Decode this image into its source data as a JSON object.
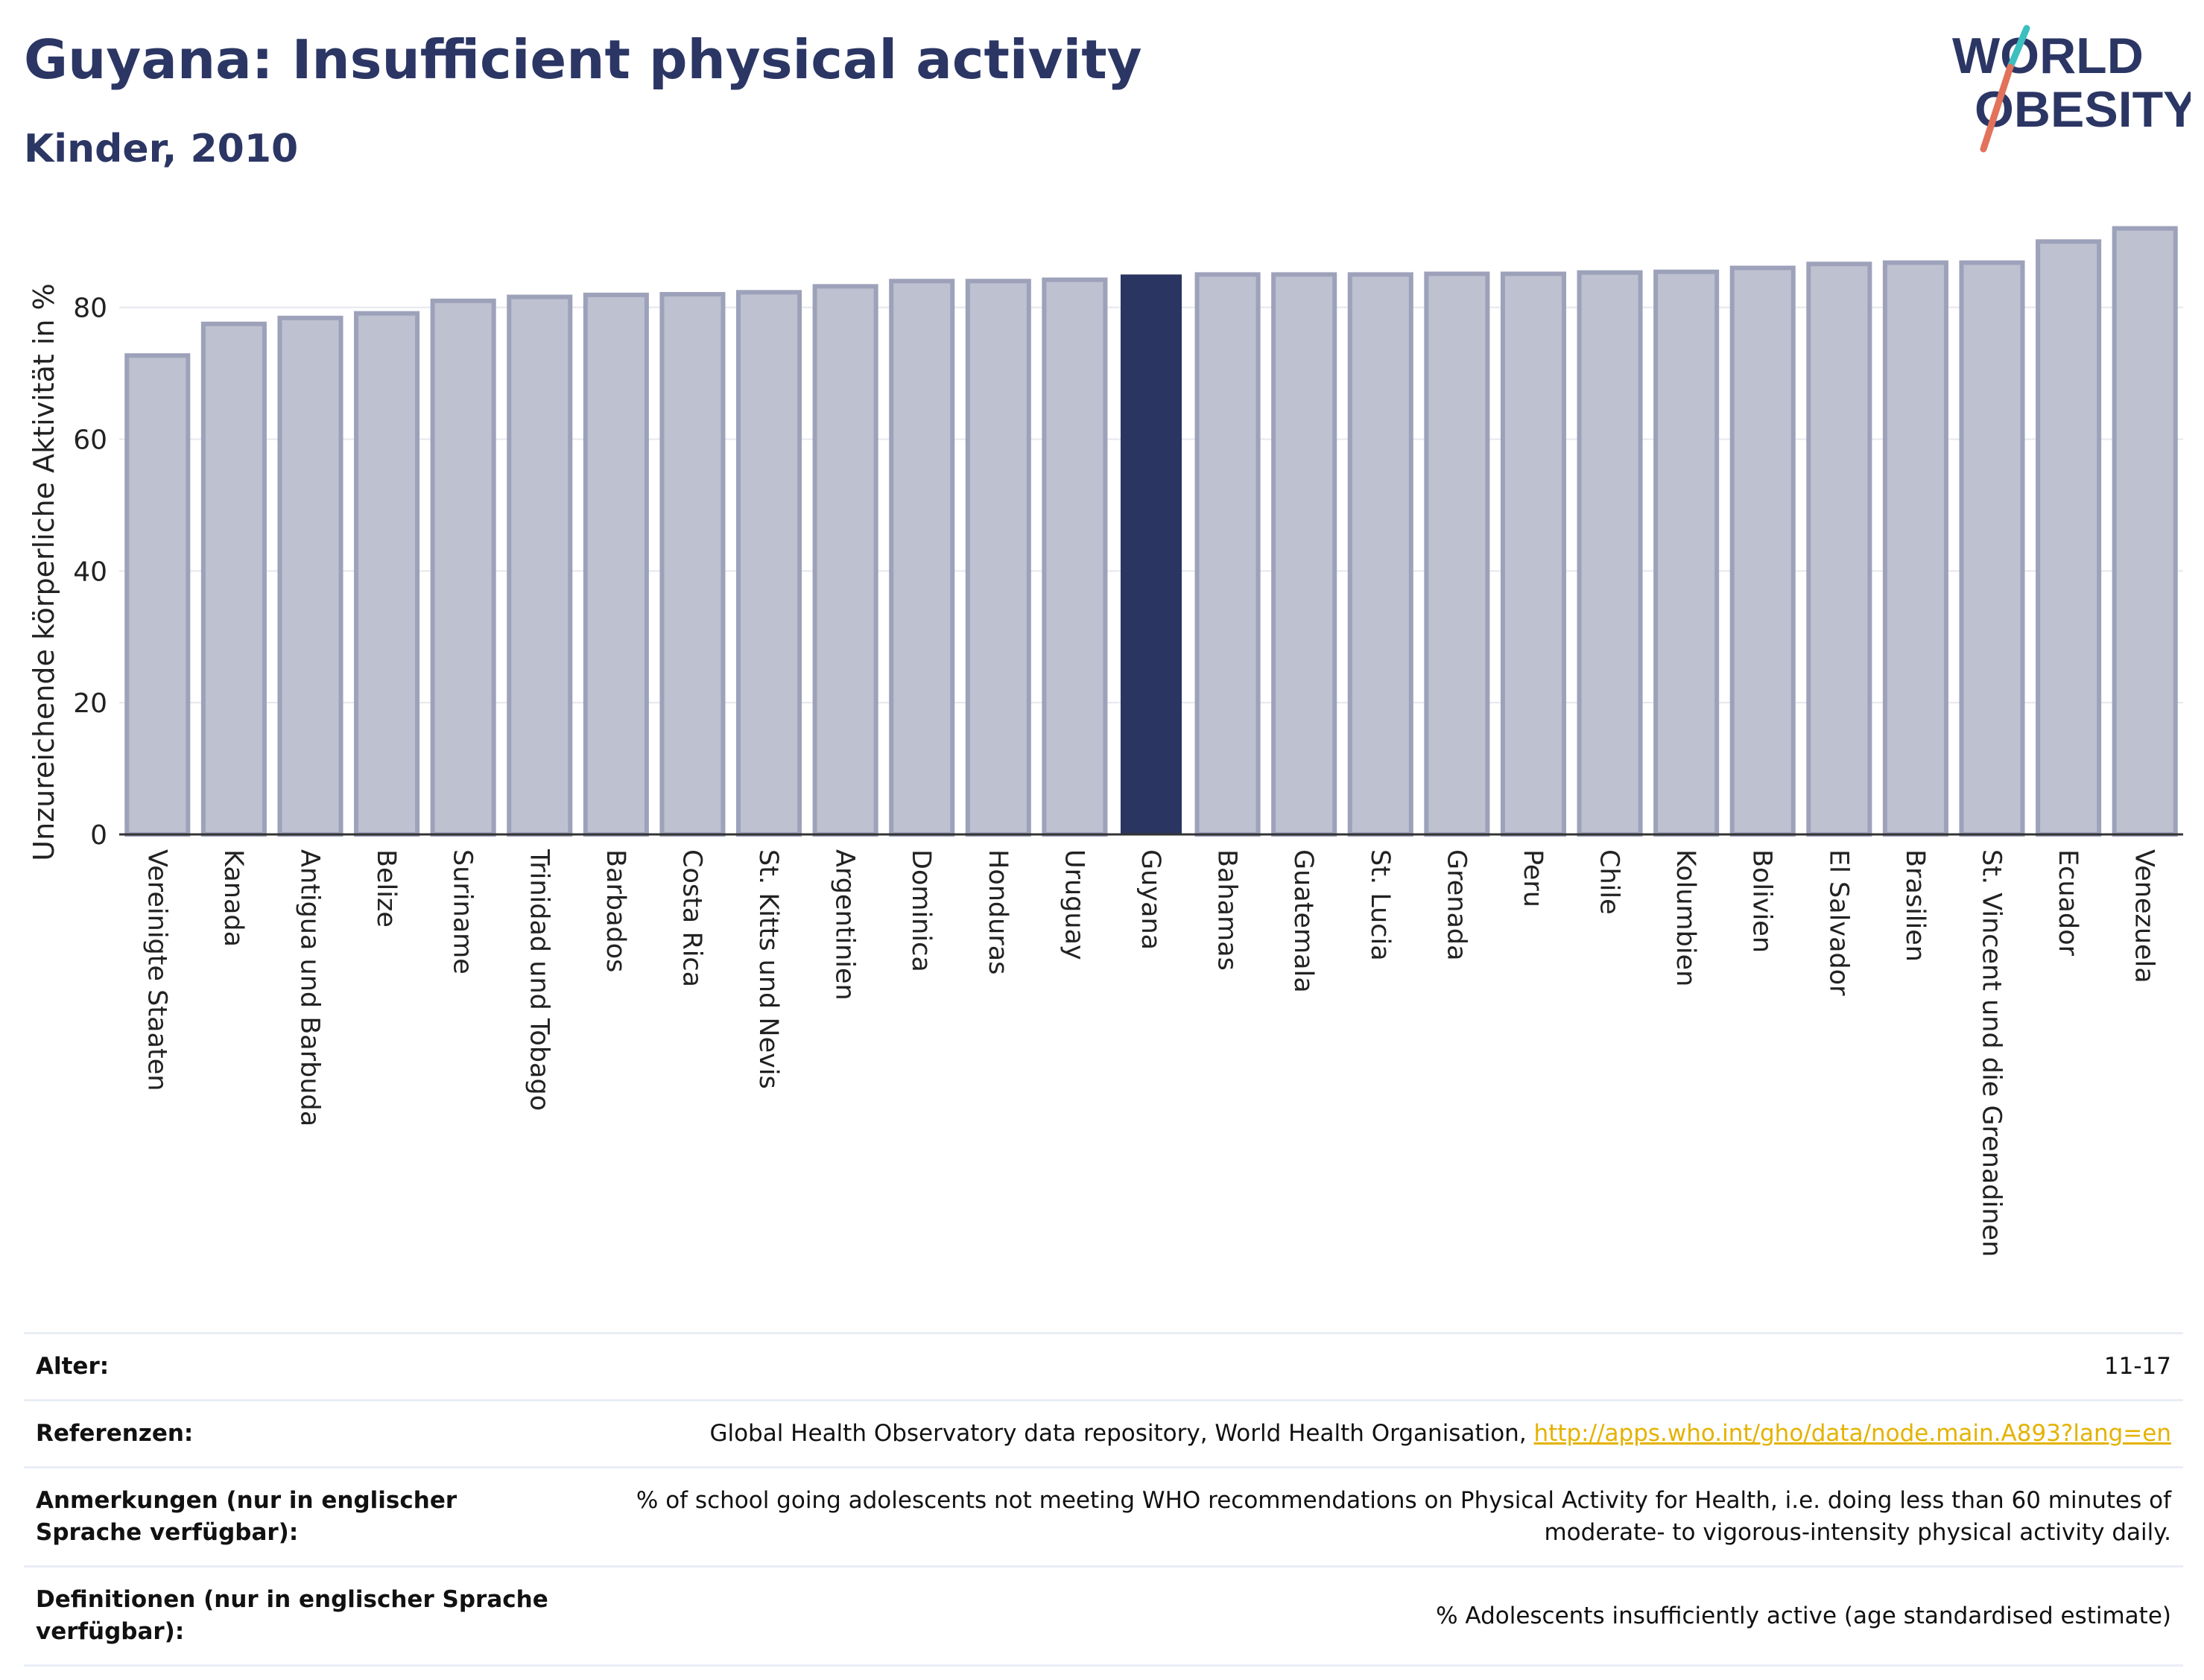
{
  "header": {
    "title": "Guyana: Insufficient physical activity",
    "subtitle": "Kinder, 2010"
  },
  "logo": {
    "line1": "WORLD",
    "line2": "OBESITY"
  },
  "colors": {
    "highlight": "#2b3562",
    "bar": "#bdc1d0",
    "bar_border": "#9da2ba",
    "text": "#2b3664",
    "link": "#e4b200"
  },
  "chart_data": {
    "type": "bar",
    "ylabel": "Unzureichende körperliche Aktivität in %",
    "xlabel": "",
    "ylim": [
      0,
      95
    ],
    "yticks": [
      0,
      20,
      40,
      60,
      80
    ],
    "grid": true,
    "highlight_category": "Guyana",
    "categories": [
      "Vereinigte Staaten",
      "Kanada",
      "Antigua und Barbuda",
      "Belize",
      "Suriname",
      "Trinidad und Tobago",
      "Barbados",
      "Costa Rica",
      "St. Kitts und Nevis",
      "Argentinien",
      "Dominica",
      "Honduras",
      "Uruguay",
      "Guyana",
      "Bahamas",
      "Guatemala",
      "St. Lucia",
      "Grenada",
      "Peru",
      "Chile",
      "Kolumbien",
      "Bolivien",
      "El Salvador",
      "Brasilien",
      "St. Vincent und die Grenadinen",
      "Ecuador",
      "Venezuela"
    ],
    "values": [
      72.7,
      77.5,
      78.4,
      79.1,
      81.0,
      81.6,
      81.9,
      82.0,
      82.3,
      83.2,
      84.0,
      84.0,
      84.2,
      85.0,
      85.0,
      85.0,
      85.0,
      85.1,
      85.1,
      85.3,
      85.4,
      86.0,
      86.6,
      86.8,
      86.8,
      90.0,
      92.0
    ]
  },
  "meta": {
    "age_label": "Alter:",
    "age_value": "11-17",
    "references_label": "Referenzen:",
    "references_text": "Global Health Observatory data repository, World Health Organisation, ",
    "references_link": "http://apps.who.int/gho/data/node.main.A893?lang=en",
    "notes_label": "Anmerkungen (nur in englischer Sprache verfügbar):",
    "notes_value": "% of school going adolescents not meeting WHO recommendations on Physical Activity for Health, i.e. doing less than 60 minutes of moderate- to vigorous-intensity physical activity daily.",
    "definitions_label": "Definitionen (nur in englischer Sprache verfügbar):",
    "definitions_value": "% Adolescents insufficiently active (age standardised estimate)"
  }
}
